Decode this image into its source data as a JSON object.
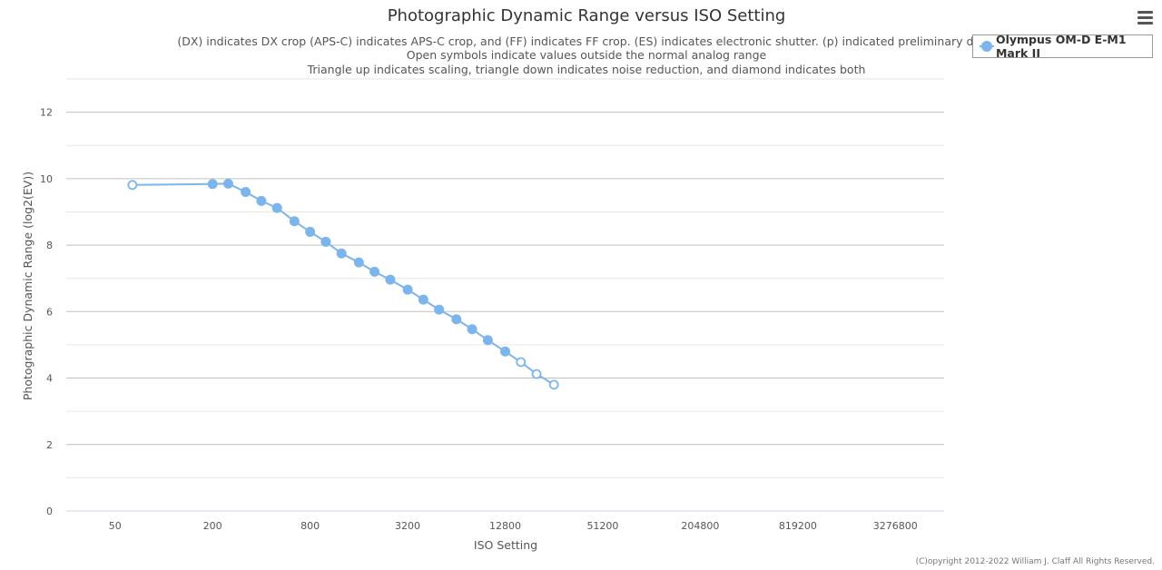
{
  "chart_data": {
    "type": "line",
    "title": "Photographic Dynamic Range versus ISO Setting",
    "subtitle_lines": [
      "(DX) indicates DX crop (APS-C) indicates APS-C crop, and (FF) indicates FF crop. (ES) indicates electronic shutter. (p) indicated preliminary data.",
      "Open symbols indicate values outside the normal analog range",
      "Triangle up indicates scaling, triangle down indicates noise reduction, and diamond indicates both"
    ],
    "xlabel": "ISO Setting",
    "ylabel": "Photographic Dynamic Range (log2(EV))",
    "x_scale": "log2",
    "xlim": [
      25,
      6553600
    ],
    "ylim": [
      0,
      13
    ],
    "x_ticks": [
      50,
      200,
      800,
      3200,
      12800,
      51200,
      204800,
      819200,
      3276800
    ],
    "x_tick_labels": [
      "50",
      "200",
      "800",
      "3200",
      "12800",
      "51200",
      "204800",
      "819200",
      "3276800"
    ],
    "y_ticks": [
      0,
      2,
      4,
      6,
      8,
      10,
      12
    ],
    "y_tick_labels": [
      "0",
      "2",
      "4",
      "6",
      "8",
      "10",
      "12"
    ],
    "grid": true,
    "legend": "right",
    "series": [
      {
        "name": "Olympus OM-D E-M1 Mark II",
        "color": "#7cb5ec",
        "points": [
          {
            "x": 64,
            "y": 9.81,
            "open": true
          },
          {
            "x": 200,
            "y": 9.84,
            "open": false
          },
          {
            "x": 250,
            "y": 9.85,
            "open": false
          },
          {
            "x": 320,
            "y": 9.6,
            "open": false
          },
          {
            "x": 400,
            "y": 9.33,
            "open": false
          },
          {
            "x": 500,
            "y": 9.12,
            "open": false
          },
          {
            "x": 640,
            "y": 8.72,
            "open": false
          },
          {
            "x": 800,
            "y": 8.4,
            "open": false
          },
          {
            "x": 1000,
            "y": 8.1,
            "open": false
          },
          {
            "x": 1250,
            "y": 7.75,
            "open": false
          },
          {
            "x": 1600,
            "y": 7.48,
            "open": false
          },
          {
            "x": 2000,
            "y": 7.2,
            "open": false
          },
          {
            "x": 2500,
            "y": 6.96,
            "open": false
          },
          {
            "x": 3200,
            "y": 6.66,
            "open": false
          },
          {
            "x": 4000,
            "y": 6.36,
            "open": false
          },
          {
            "x": 5000,
            "y": 6.06,
            "open": false
          },
          {
            "x": 6400,
            "y": 5.77,
            "open": false
          },
          {
            "x": 8000,
            "y": 5.47,
            "open": false
          },
          {
            "x": 10000,
            "y": 5.14,
            "open": false
          },
          {
            "x": 12800,
            "y": 4.8,
            "open": false
          },
          {
            "x": 16000,
            "y": 4.48,
            "open": true
          },
          {
            "x": 20000,
            "y": 4.12,
            "open": true
          },
          {
            "x": 25600,
            "y": 3.8,
            "open": true
          }
        ]
      }
    ]
  },
  "credits": "(C)opyright 2012-2022 William J. Claff All Rights Reserved.",
  "menu": {
    "icon": "hamburger-menu-icon"
  }
}
